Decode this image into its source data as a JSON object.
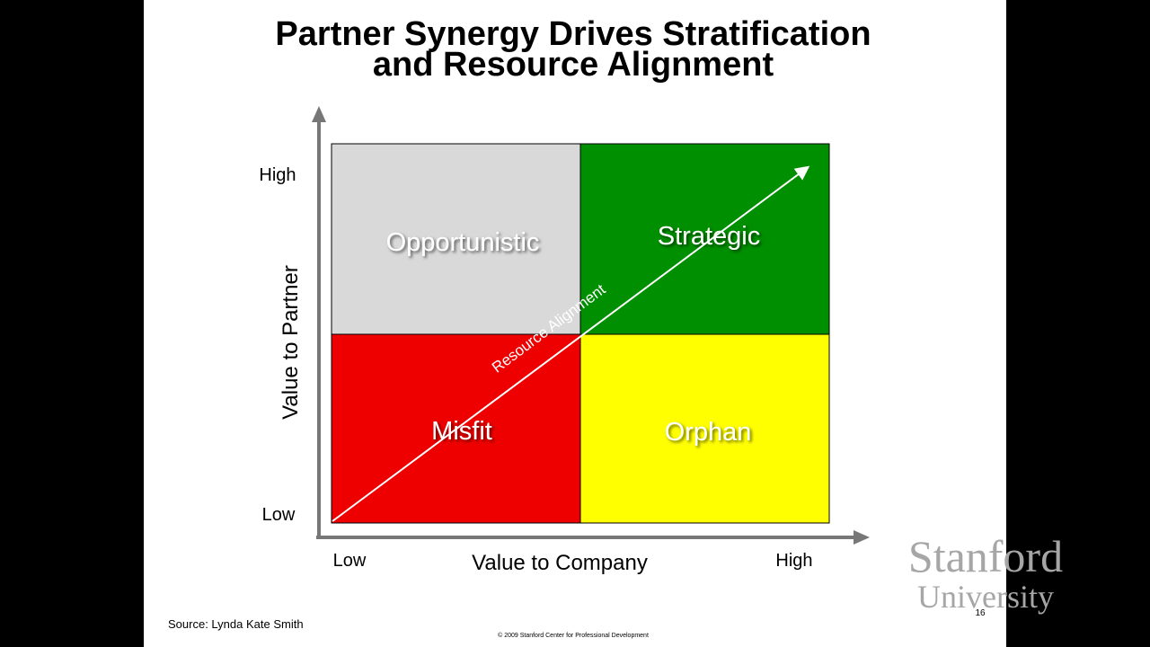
{
  "title": {
    "line1": "Partner Synergy Drives Stratification",
    "line2": "and Resource Alignment"
  },
  "axes": {
    "y_label": "Value to Partner",
    "y_high": "High",
    "y_low": "Low",
    "x_label": "Value to Company",
    "x_low": "Low",
    "x_high": "High"
  },
  "quadrants": [
    {
      "label": "Opportunistic"
    },
    {
      "label": "Strategic"
    },
    {
      "label": "Misfit"
    },
    {
      "label": "Orphan"
    }
  ],
  "arrow_label": "Resource Alignment",
  "source": "Source:  Lynda Kate Smith",
  "copyright": "© 2009 Stanford Center for Professional Development",
  "logo": {
    "line1": "Stanford",
    "line2": "University"
  },
  "page_number": "16"
}
